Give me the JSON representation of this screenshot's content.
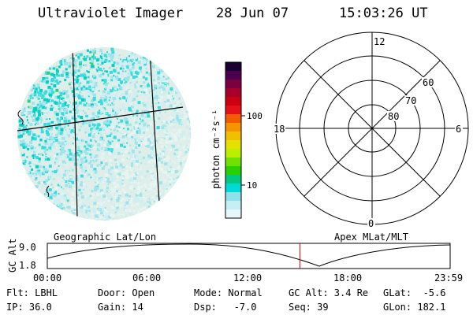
{
  "header": {
    "instrument": "Ultraviolet Imager",
    "date": "28 Jun 07",
    "time": "15:03:26 UT"
  },
  "colorbar": {
    "label": "photon cm⁻²s⁻¹",
    "ticks": [
      "100",
      "10"
    ],
    "colors": [
      "#1a0033",
      "#4b0050",
      "#7a0040",
      "#a8002a",
      "#cc0010",
      "#e4101a",
      "#f25c00",
      "#f59400",
      "#f0c000",
      "#e5e000",
      "#b8f000",
      "#70e000",
      "#28d000",
      "#00c880",
      "#00d8d8",
      "#8ee0e8",
      "#c6eef4",
      "#e6f6fa"
    ]
  },
  "left_panel": {
    "label": "Geographic Lat/Lon"
  },
  "right_panel": {
    "label": "Apex MLat/MLT",
    "mlt_labels": [
      "12",
      "18",
      "6",
      "0"
    ],
    "lat_labels": [
      "60",
      "70",
      "80"
    ]
  },
  "timeline": {
    "ylabel": "GC Alt",
    "yticks": [
      "9.0",
      "1.8"
    ],
    "xticks": [
      "00:00",
      "06:00",
      "12:00",
      "18:00",
      "23:59"
    ],
    "current_fraction": 0.627
  },
  "status": {
    "flt": "Flt: LBHL",
    "ip": "IP: 36.0",
    "door": "Door: Open",
    "gain": "Gain: 14",
    "mode": "Mode: Normal",
    "dsp": "Dsp:   -7.0",
    "gc_alt": "GC Alt: 3.4 Re",
    "seq": "Seq: 39",
    "glat": "GLat:  -5.6",
    "glon": "GLon: 182.1"
  }
}
